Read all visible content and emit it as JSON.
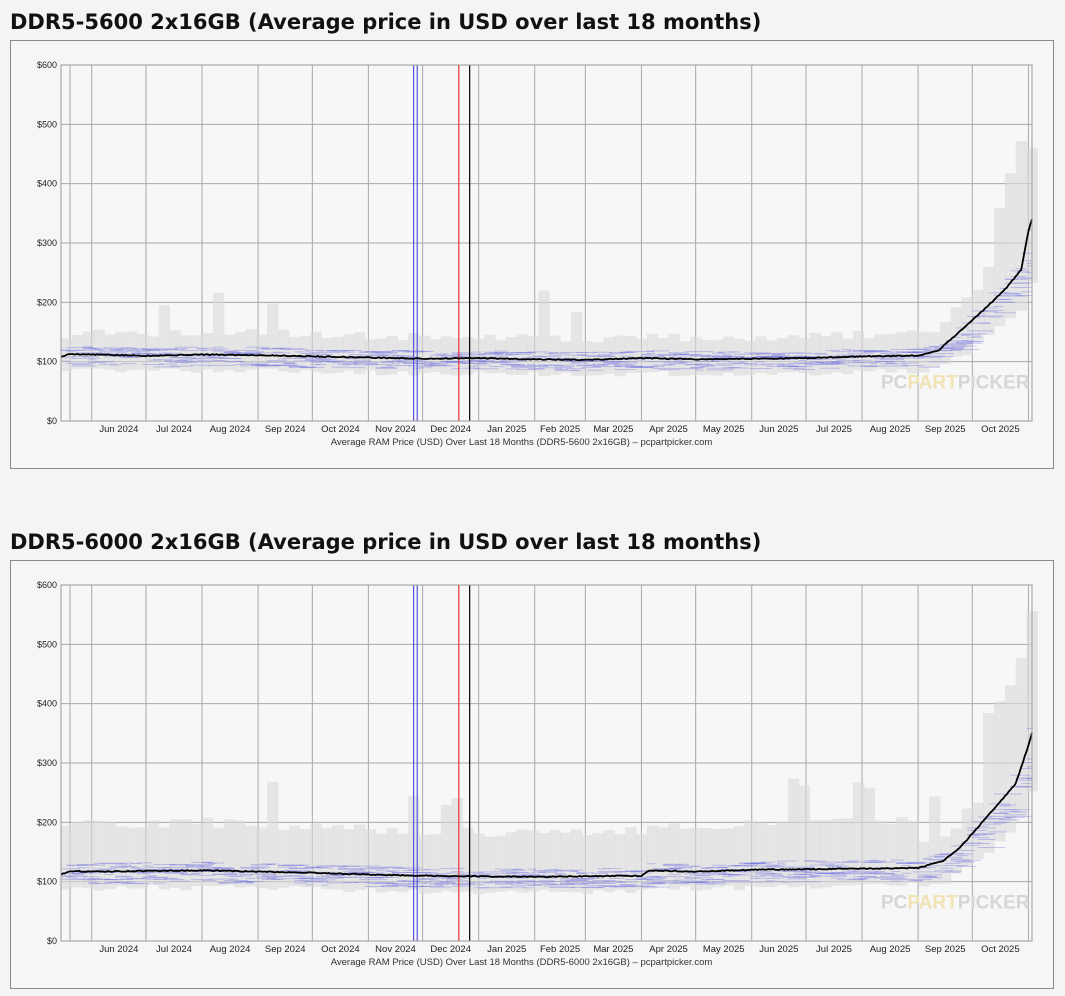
{
  "chart_data": [
    {
      "type": "line",
      "title": "DDR5-5600 2x16GB (Average price in USD over last 18 months)",
      "caption": "Average RAM Price (USD) Over Last 18 Months (DDR5-5600 2x16GB) – pcpartpicker.com",
      "watermark": {
        "part1": "PC",
        "part2": "PART",
        "part3": "PICKER"
      },
      "ylim": [
        0,
        600
      ],
      "yticks": [
        "$0",
        "$100",
        "$200",
        "$300",
        "$400",
        "$500",
        "$600"
      ],
      "xlim": [
        "2024-05-15",
        "2025-11-03"
      ],
      "xticks": [
        "Jun 2024",
        "Jul 2024",
        "Aug 2024",
        "Sep 2024",
        "Oct 2024",
        "Nov 2024",
        "Dec 2024",
        "Jan 2025",
        "Feb 2025",
        "Mar 2025",
        "Apr 2025",
        "May 2025",
        "Jun 2025",
        "Jul 2025",
        "Aug 2025",
        "Sep 2025",
        "Oct 2025"
      ],
      "grid": true,
      "colors": {
        "average_line": "#000000",
        "spread": "#6a6ae0",
        "range_band": "#d8d8d8"
      },
      "markers": [
        {
          "x": "2024-11-26",
          "color": "#5555dd"
        },
        {
          "x": "2024-11-28",
          "color": "#5555dd"
        },
        {
          "x": "2024-12-21",
          "color": "#ee3333"
        },
        {
          "x": "2024-12-27",
          "color": "#000000"
        }
      ],
      "series": [
        {
          "x": [
            "2024-05-15",
            "2024-05-20",
            "2024-06-01",
            "2024-07-01",
            "2024-08-01",
            "2024-09-01",
            "2024-10-01",
            "2024-11-01",
            "2024-12-01",
            "2025-01-01",
            "2025-02-01",
            "2025-03-01",
            "2025-04-01",
            "2025-05-01",
            "2025-06-01",
            "2025-07-01",
            "2025-08-01",
            "2025-09-01",
            "2025-09-12",
            "2025-09-20",
            "2025-10-01",
            "2025-10-10",
            "2025-10-20",
            "2025-10-28",
            "2025-11-01",
            "2025-11-03"
          ],
          "y": [
            108,
            113,
            112,
            110,
            112,
            111,
            109,
            107,
            105,
            106,
            104,
            103,
            106,
            104,
            105,
            106,
            109,
            110,
            118,
            140,
            170,
            195,
            225,
            255,
            320,
            340
          ]
        }
      ]
    },
    {
      "type": "line",
      "title": "DDR5-6000 2x16GB (Average price in USD over last 18 months)",
      "caption": "Average RAM Price (USD) Over Last 18 Months (DDR5-6000 2x16GB) – pcpartpicker.com",
      "watermark": {
        "part1": "PC",
        "part2": "PART",
        "part3": "PICKER"
      },
      "ylim": [
        0,
        600
      ],
      "yticks": [
        "$0",
        "$100",
        "$200",
        "$300",
        "$400",
        "$500",
        "$600"
      ],
      "xlim": [
        "2024-05-15",
        "2025-11-03"
      ],
      "xticks": [
        "Jun 2024",
        "Jul 2024",
        "Aug 2024",
        "Sep 2024",
        "Oct 2024",
        "Nov 2024",
        "Dec 2024",
        "Jan 2025",
        "Feb 2025",
        "Mar 2025",
        "Apr 2025",
        "May 2025",
        "Jun 2025",
        "Jul 2025",
        "Aug 2025",
        "Sep 2025",
        "Oct 2025"
      ],
      "grid": true,
      "colors": {
        "average_line": "#000000",
        "spread": "#6a6ae0",
        "range_band": "#d8d8d8"
      },
      "markers": [
        {
          "x": "2024-11-26",
          "color": "#5555dd"
        },
        {
          "x": "2024-11-28",
          "color": "#5555dd"
        },
        {
          "x": "2024-12-21",
          "color": "#ee3333"
        },
        {
          "x": "2024-12-27",
          "color": "#000000"
        }
      ],
      "series": [
        {
          "x": [
            "2024-05-15",
            "2024-05-20",
            "2024-06-01",
            "2024-07-01",
            "2024-08-01",
            "2024-09-01",
            "2024-10-01",
            "2024-11-01",
            "2024-12-01",
            "2025-01-01",
            "2025-02-01",
            "2025-03-01",
            "2025-04-01",
            "2025-04-05",
            "2025-05-01",
            "2025-06-01",
            "2025-07-01",
            "2025-08-01",
            "2025-09-01",
            "2025-09-15",
            "2025-09-25",
            "2025-10-05",
            "2025-10-15",
            "2025-10-25",
            "2025-11-01",
            "2025-11-03"
          ],
          "y": [
            112,
            118,
            117,
            118,
            119,
            117,
            115,
            112,
            110,
            109,
            108,
            109,
            110,
            119,
            117,
            120,
            121,
            122,
            123,
            135,
            160,
            195,
            230,
            265,
            330,
            350
          ]
        }
      ]
    }
  ]
}
